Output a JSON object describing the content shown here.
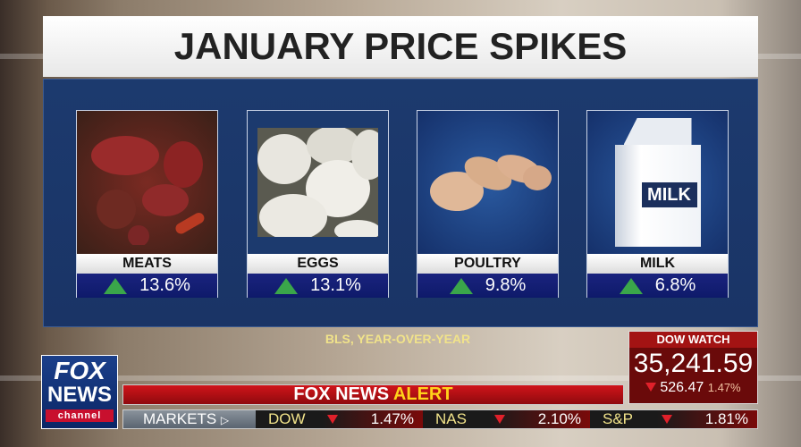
{
  "title": "JANUARY PRICE SPIKES",
  "items": [
    {
      "label": "MEATS",
      "value": "13.6%",
      "trend": "up"
    },
    {
      "label": "EGGS",
      "value": "13.1%",
      "trend": "up"
    },
    {
      "label": "POULTRY",
      "value": "9.8%",
      "trend": "up"
    },
    {
      "label": "MILK",
      "value": "6.8%",
      "trend": "up",
      "carton_text": "MILK"
    }
  ],
  "source": "BLS, YEAR-OVER-YEAR",
  "dow_watch": {
    "header": "DOW WATCH",
    "value": "35,241.59",
    "change": "526.47",
    "percent": "1.47%",
    "trend": "down"
  },
  "logo": {
    "line1": "FOX",
    "line2": "NEWS",
    "line3": "channel"
  },
  "alert": {
    "white": "FOX NEWS",
    "yellow": "ALERT"
  },
  "markets": {
    "label": "MARKETS",
    "tickers": [
      {
        "symbol": "DOW",
        "change": "1.47%",
        "trend": "down"
      },
      {
        "symbol": "NAS",
        "change": "2.10%",
        "trend": "down"
      },
      {
        "symbol": "S&P",
        "change": "1.81%",
        "trend": "down"
      }
    ]
  },
  "colors": {
    "panel": "#1c3a6e",
    "up": "#3aa64a",
    "down": "#e0202a",
    "alert_red": "#c8141a",
    "alert_yellow": "#ffd21a"
  }
}
